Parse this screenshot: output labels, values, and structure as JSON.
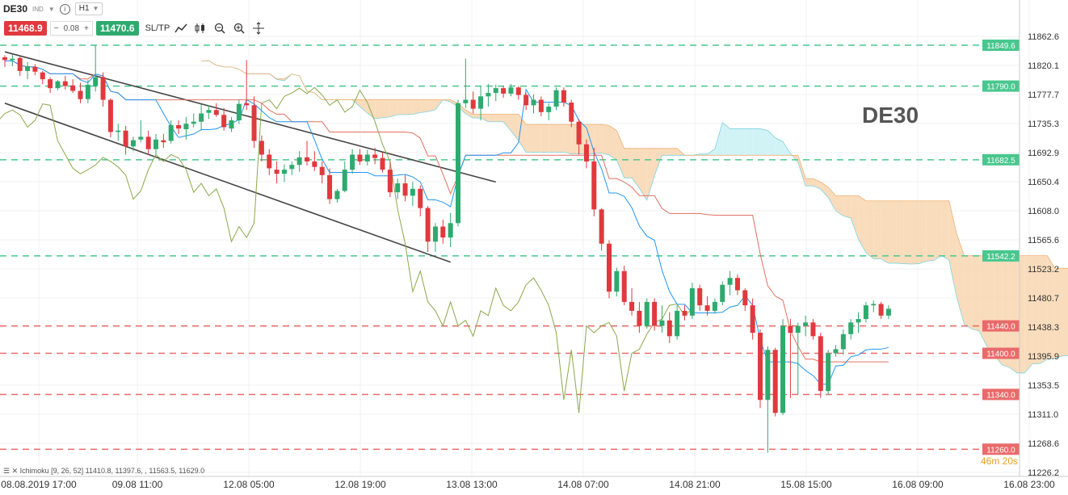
{
  "toolbar": {
    "symbol": "DE30",
    "market_tag": "IND",
    "timeframe": "H1",
    "info_icon": "info-icon"
  },
  "trade": {
    "sell_price": "11468.9",
    "spread": "0.08",
    "minus_label": "−",
    "plus_label": "+",
    "buy_price": "11470.6",
    "sltp_label": "SL/TP",
    "tools": [
      "line-tool-icon",
      "candles-icon",
      "zoom-out-icon",
      "zoom-in-icon",
      "crosshair-icon"
    ]
  },
  "watermark": "DE30",
  "status": {
    "indicator_text": "Ichimoku [9, 26, 52] 11410.8, 11397.6, , 11563.5, 11629.0",
    "countdown": "46m 20s"
  },
  "colors": {
    "up": "#2eaa6e",
    "down": "#e0393e",
    "tenkan": "#2196f3",
    "kijun": "#e07060",
    "chikou": "#8aa84a",
    "cloud_up": "#c9f1f5",
    "cloud_down": "#f8d6b0",
    "channel": "#444444",
    "green_level": "#48c78e",
    "red_level": "#ea6a6a"
  },
  "chart_data": {
    "type": "candlestick",
    "title": "DE30",
    "ylim": [
      11226.2,
      11862.6
    ],
    "y_ticks": [
      11862.6,
      11820.1,
      11777.7,
      11735.3,
      11692.9,
      11650.4,
      11608.0,
      11565.6,
      11523.2,
      11480.7,
      11438.3,
      11395.9,
      11353.5,
      11311.0,
      11268.6,
      11226.2
    ],
    "x_tick_labels": [
      "08.08.2019 17:00",
      "09.08 11:00",
      "12.08 05:00",
      "12.08 19:00",
      "13.08 13:00",
      "14.08 07:00",
      "14.08 21:00",
      "15.08 15:00",
      "16.08 09:00",
      "16.08 23:00"
    ],
    "price_levels": [
      {
        "value": 11849.6,
        "label": "11849.6",
        "kind": "support"
      },
      {
        "value": 11790.0,
        "label": "11790.0",
        "kind": "support"
      },
      {
        "value": 11682.5,
        "label": "11682.5",
        "kind": "support"
      },
      {
        "value": 11542.2,
        "label": "11542.2",
        "kind": "support"
      },
      {
        "value": 11440.0,
        "label": "11440.0",
        "kind": "resistance"
      },
      {
        "value": 11400.0,
        "label": "11400.0",
        "kind": "resistance"
      },
      {
        "value": 11340.0,
        "label": "11340.0",
        "kind": "resistance"
      },
      {
        "value": 11260.0,
        "label": "11260.0",
        "kind": "resistance"
      }
    ],
    "candles": [
      [
        11832,
        11835,
        11818,
        11828
      ],
      [
        11828,
        11836,
        11819,
        11830
      ],
      [
        11831,
        11833,
        11805,
        11812
      ],
      [
        11812,
        11825,
        11800,
        11819
      ],
      [
        11818,
        11822,
        11806,
        11811
      ],
      [
        11810,
        11812,
        11793,
        11800
      ],
      [
        11800,
        11803,
        11780,
        11787
      ],
      [
        11787,
        11799,
        11784,
        11797
      ],
      [
        11797,
        11805,
        11785,
        11790
      ],
      [
        11791,
        11800,
        11780,
        11783
      ],
      [
        11783,
        11795,
        11765,
        11771
      ],
      [
        11771,
        11799,
        11765,
        11792
      ],
      [
        11790,
        11850,
        11782,
        11803
      ],
      [
        11803,
        11810,
        11760,
        11770
      ],
      [
        11770,
        11772,
        11715,
        11723
      ],
      [
        11723,
        11735,
        11710,
        11725
      ],
      [
        11725,
        11732,
        11690,
        11702
      ],
      [
        11702,
        11716,
        11695,
        11711
      ],
      [
        11712,
        11740,
        11708,
        11716
      ],
      [
        11716,
        11725,
        11690,
        11698
      ],
      [
        11698,
        11720,
        11690,
        11712
      ],
      [
        11711,
        11720,
        11700,
        11708
      ],
      [
        11710,
        11740,
        11706,
        11733
      ],
      [
        11733,
        11740,
        11720,
        11728
      ],
      [
        11727,
        11745,
        11712,
        11735
      ],
      [
        11735,
        11750,
        11730,
        11738
      ],
      [
        11738,
        11763,
        11725,
        11750
      ],
      [
        11751,
        11762,
        11742,
        11755
      ],
      [
        11755,
        11765,
        11745,
        11748
      ],
      [
        11748,
        11758,
        11725,
        11730
      ],
      [
        11728,
        11745,
        11723,
        11740
      ],
      [
        11740,
        11770,
        11735,
        11764
      ],
      [
        11765,
        11828,
        11755,
        11762
      ],
      [
        11762,
        11775,
        11700,
        11710
      ],
      [
        11710,
        11718,
        11680,
        11690
      ],
      [
        11690,
        11698,
        11660,
        11670
      ],
      [
        11668,
        11680,
        11648,
        11662
      ],
      [
        11662,
        11676,
        11650,
        11668
      ],
      [
        11669,
        11680,
        11660,
        11675
      ],
      [
        11675,
        11695,
        11665,
        11686
      ],
      [
        11686,
        11710,
        11674,
        11680
      ],
      [
        11680,
        11695,
        11666,
        11672
      ],
      [
        11672,
        11680,
        11648,
        11660
      ],
      [
        11660,
        11670,
        11618,
        11625
      ],
      [
        11625,
        11640,
        11620,
        11637
      ],
      [
        11637,
        11680,
        11635,
        11668
      ],
      [
        11668,
        11698,
        11662,
        11690
      ],
      [
        11690,
        11698,
        11675,
        11680
      ],
      [
        11680,
        11697,
        11674,
        11690
      ],
      [
        11690,
        11700,
        11676,
        11685
      ],
      [
        11685,
        11693,
        11664,
        11668
      ],
      [
        11668,
        11680,
        11628,
        11635
      ],
      [
        11635,
        11655,
        11625,
        11648
      ],
      [
        11648,
        11660,
        11622,
        11630
      ],
      [
        11630,
        11650,
        11615,
        11640
      ],
      [
        11640,
        11645,
        11600,
        11612
      ],
      [
        11612,
        11615,
        11548,
        11563
      ],
      [
        11563,
        11590,
        11548,
        11585
      ],
      [
        11585,
        11595,
        11560,
        11569
      ],
      [
        11569,
        11605,
        11555,
        11590
      ],
      [
        11590,
        11770,
        11585,
        11765
      ],
      [
        11765,
        11830,
        11758,
        11770
      ],
      [
        11770,
        11782,
        11750,
        11757
      ],
      [
        11757,
        11790,
        11740,
        11775
      ],
      [
        11775,
        11793,
        11760,
        11780
      ],
      [
        11780,
        11792,
        11768,
        11787
      ],
      [
        11787,
        11790,
        11773,
        11779
      ],
      [
        11779,
        11793,
        11775,
        11788
      ],
      [
        11788,
        11790,
        11770,
        11777
      ],
      [
        11777,
        11780,
        11755,
        11762
      ],
      [
        11762,
        11778,
        11750,
        11770
      ],
      [
        11770,
        11775,
        11746,
        11752
      ],
      [
        11752,
        11765,
        11740,
        11760
      ],
      [
        11760,
        11788,
        11755,
        11784
      ],
      [
        11784,
        11788,
        11760,
        11766
      ],
      [
        11766,
        11770,
        11730,
        11738
      ],
      [
        11738,
        11742,
        11690,
        11705
      ],
      [
        11705,
        11712,
        11670,
        11680
      ],
      [
        11680,
        11700,
        11600,
        11610
      ],
      [
        11610,
        11612,
        11550,
        11560
      ],
      [
        11560,
        11565,
        11480,
        11490
      ],
      [
        11490,
        11525,
        11483,
        11520
      ],
      [
        11520,
        11528,
        11470,
        11475
      ],
      [
        11475,
        11495,
        11455,
        11462
      ],
      [
        11462,
        11475,
        11430,
        11440
      ],
      [
        11440,
        11480,
        11436,
        11475
      ],
      [
        11475,
        11480,
        11433,
        11440
      ],
      [
        11440,
        11470,
        11430,
        11448
      ],
      [
        11448,
        11460,
        11415,
        11425
      ],
      [
        11425,
        11470,
        11420,
        11462
      ],
      [
        11462,
        11470,
        11448,
        11455
      ],
      [
        11455,
        11503,
        11450,
        11495
      ],
      [
        11495,
        11500,
        11462,
        11470
      ],
      [
        11470,
        11483,
        11455,
        11462
      ],
      [
        11462,
        11480,
        11458,
        11475
      ],
      [
        11475,
        11505,
        11470,
        11500
      ],
      [
        11500,
        11520,
        11485,
        11510
      ],
      [
        11510,
        11515,
        11485,
        11492
      ],
      [
        11492,
        11495,
        11462,
        11470
      ],
      [
        11470,
        11480,
        11420,
        11430
      ],
      [
        11430,
        11435,
        11320,
        11332
      ],
      [
        11332,
        11410,
        11255,
        11405
      ],
      [
        11405,
        11408,
        11308,
        11313
      ],
      [
        11313,
        11450,
        11310,
        11440
      ],
      [
        11440,
        11450,
        11335,
        11430
      ],
      [
        11430,
        11445,
        11340,
        11440
      ],
      [
        11440,
        11455,
        11425,
        11445
      ],
      [
        11445,
        11450,
        11420,
        11425
      ],
      [
        11425,
        11430,
        11335,
        11345
      ],
      [
        11345,
        11405,
        11340,
        11400
      ],
      [
        11400,
        11412,
        11395,
        11406
      ],
      [
        11406,
        11435,
        11398,
        11428
      ],
      [
        11428,
        11450,
        11420,
        11445
      ],
      [
        11445,
        11460,
        11430,
        11450
      ],
      [
        11450,
        11475,
        11445,
        11470
      ],
      [
        11470,
        11477,
        11460,
        11472
      ],
      [
        11472,
        11475,
        11450,
        11455
      ],
      [
        11455,
        11470,
        11450,
        11465
      ]
    ]
  }
}
